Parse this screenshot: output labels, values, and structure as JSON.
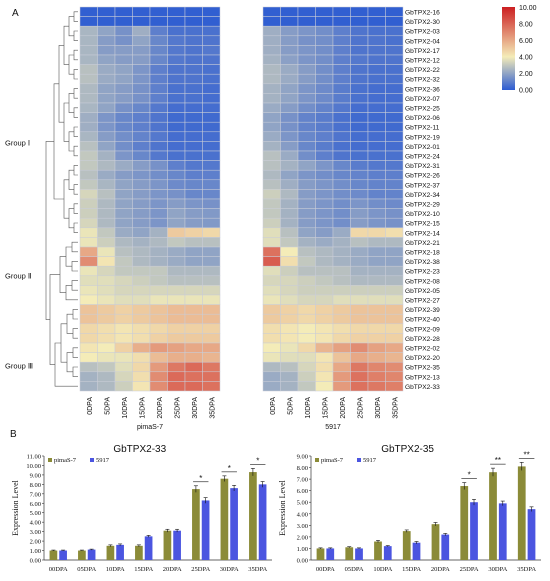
{
  "panels": {
    "a": "A",
    "b": "B"
  },
  "colors": {
    "low": "#2c5bd2",
    "mid": "#f4ecb8",
    "high": "#cc1f22",
    "series1": "#8b8b38",
    "series2": "#4b55e0"
  },
  "heatmap": {
    "type": "heatmap",
    "groups": [
      "Group Ⅰ",
      "Group Ⅱ",
      "Group Ⅲ"
    ],
    "genes": [
      "GbTPX2-16",
      "GbTPX2-30",
      "GbTPX2-03",
      "GbTPX2-04",
      "GbTPX2-17",
      "GbTPX2-12",
      "GbTPX2-22",
      "GbTPX2-32",
      "GbTPX2-36",
      "GbTPX2-07",
      "GbTPX2-25",
      "GbTPX2-06",
      "GbTPX2-11",
      "GbTPX2-19",
      "GbTPX2-01",
      "GbTPX2-24",
      "GbTPX2-31",
      "GbTPX2-26",
      "GbTPX2-37",
      "GbTPX2-34",
      "GbTPX2-29",
      "GbTPX2-10",
      "GbTPX2-15",
      "GbTPX2-14",
      "GbTPX2-21",
      "GbTPX2-18",
      "GbTPX2-38",
      "GbTPX2-23",
      "GbTPX2-08",
      "GbTPX2-05",
      "GbTPX2-27",
      "GbTPX2-39",
      "GbTPX2-40",
      "GbTPX2-09",
      "GbTPX2-28",
      "GbTPX2-02",
      "GbTPX2-20",
      "GbTPX2-35",
      "GbTPX2-13",
      "GbTPX2-33"
    ],
    "columns": [
      "0DPA",
      "5DPA",
      "10DPA",
      "15DPA",
      "20DPA",
      "25DPA",
      "30DPA",
      "35DPA"
    ],
    "samples": [
      "pimaS-7",
      "5917"
    ],
    "legend_ticks": [
      "10.00",
      "8.00",
      "6.00",
      "4.00",
      "2.00",
      "0.00"
    ],
    "vmin": 0,
    "vmax": 10,
    "values_pimaS7": [
      [
        0.1,
        0.1,
        0.1,
        0.1,
        0.1,
        0.1,
        0.1,
        0.1
      ],
      [
        0.1,
        0.1,
        0.1,
        0.1,
        0.1,
        0.1,
        0.1,
        0.1
      ],
      [
        2.5,
        2.0,
        1.5,
        2.3,
        1.0,
        0.6,
        0.6,
        0.6
      ],
      [
        2.5,
        1.8,
        1.5,
        2.0,
        1.2,
        0.8,
        0.7,
        0.7
      ],
      [
        2.5,
        1.8,
        1.8,
        1.8,
        1.2,
        0.8,
        0.7,
        0.8
      ],
      [
        2.5,
        2.0,
        1.8,
        1.8,
        1.2,
        0.8,
        0.7,
        0.7
      ],
      [
        2.8,
        2.2,
        2.0,
        1.6,
        1.0,
        0.7,
        0.7,
        0.6
      ],
      [
        2.8,
        2.2,
        2.0,
        1.6,
        1.0,
        0.7,
        0.7,
        0.6
      ],
      [
        2.6,
        2.0,
        1.8,
        1.5,
        1.0,
        0.6,
        0.6,
        0.5
      ],
      [
        2.6,
        2.0,
        1.8,
        1.5,
        1.0,
        0.6,
        0.6,
        0.5
      ],
      [
        2.5,
        2.0,
        1.5,
        1.2,
        0.8,
        0.5,
        0.5,
        0.5
      ],
      [
        2.3,
        1.6,
        1.2,
        1.0,
        0.7,
        0.4,
        0.4,
        0.4
      ],
      [
        2.3,
        1.6,
        1.2,
        1.0,
        0.7,
        0.4,
        0.4,
        0.4
      ],
      [
        2.5,
        1.8,
        1.4,
        1.1,
        0.8,
        0.5,
        0.5,
        0.5
      ],
      [
        2.8,
        2.0,
        1.4,
        1.0,
        0.7,
        0.5,
        0.5,
        0.5
      ],
      [
        3.0,
        2.4,
        1.6,
        1.2,
        0.8,
        0.6,
        0.6,
        0.6
      ],
      [
        3.0,
        2.6,
        2.2,
        1.8,
        1.5,
        1.0,
        0.8,
        0.8
      ],
      [
        2.8,
        2.2,
        1.8,
        1.6,
        1.4,
        1.2,
        1.0,
        1.0
      ],
      [
        3.0,
        2.5,
        2.0,
        1.8,
        1.6,
        1.3,
        1.2,
        1.2
      ],
      [
        3.4,
        2.8,
        2.0,
        1.8,
        1.6,
        1.5,
        1.2,
        1.2
      ],
      [
        3.2,
        2.6,
        2.0,
        1.8,
        1.6,
        1.8,
        1.6,
        1.5
      ],
      [
        3.2,
        2.6,
        2.0,
        1.8,
        1.6,
        2.0,
        1.8,
        1.7
      ],
      [
        3.4,
        2.6,
        2.0,
        1.8,
        1.6,
        2.0,
        1.8,
        1.7
      ],
      [
        3.8,
        3.0,
        2.2,
        2.0,
        2.4,
        5.0,
        4.8,
        4.6
      ],
      [
        3.8,
        3.2,
        2.6,
        2.4,
        2.6,
        3.0,
        2.8,
        2.8
      ],
      [
        6.0,
        3.8,
        2.8,
        2.6,
        2.4,
        2.2,
        2.0,
        2.0
      ],
      [
        6.8,
        4.2,
        3.0,
        2.6,
        2.4,
        2.2,
        2.0,
        2.0
      ],
      [
        3.8,
        3.4,
        3.0,
        3.0,
        3.0,
        2.6,
        2.6,
        2.6
      ],
      [
        3.6,
        3.6,
        3.4,
        3.2,
        3.0,
        2.8,
        2.8,
        2.8
      ],
      [
        3.8,
        3.6,
        3.4,
        3.4,
        3.4,
        3.4,
        3.4,
        3.4
      ],
      [
        4.0,
        3.8,
        3.6,
        3.6,
        3.8,
        3.8,
        3.8,
        3.8
      ],
      [
        5.2,
        5.0,
        4.8,
        5.0,
        5.2,
        5.4,
        5.4,
        5.4
      ],
      [
        5.2,
        5.0,
        4.8,
        5.0,
        5.2,
        5.4,
        5.4,
        5.4
      ],
      [
        4.6,
        4.4,
        4.2,
        4.4,
        4.6,
        4.8,
        4.8,
        4.8
      ],
      [
        4.6,
        4.4,
        4.2,
        4.4,
        4.8,
        5.0,
        5.0,
        5.0
      ],
      [
        4.2,
        4.0,
        4.8,
        5.8,
        6.4,
        6.2,
        6.0,
        6.0
      ],
      [
        4.0,
        3.8,
        3.8,
        4.4,
        5.4,
        5.8,
        5.8,
        5.6
      ],
      [
        2.8,
        3.0,
        3.6,
        4.6,
        6.4,
        7.4,
        7.8,
        7.4
      ],
      [
        2.4,
        2.6,
        3.4,
        4.4,
        6.8,
        7.8,
        7.6,
        7.6
      ],
      [
        2.4,
        2.6,
        3.2,
        4.2,
        6.8,
        7.8,
        7.8,
        7.6
      ]
    ],
    "values_5917": [
      [
        0.1,
        0.1,
        0.1,
        0.1,
        0.1,
        0.1,
        0.1,
        0.1
      ],
      [
        0.1,
        0.1,
        0.1,
        0.1,
        0.1,
        0.1,
        0.1,
        0.1
      ],
      [
        2.3,
        1.8,
        1.6,
        1.4,
        1.0,
        0.7,
        0.6,
        0.6
      ],
      [
        2.3,
        1.8,
        1.5,
        1.4,
        1.0,
        0.7,
        0.7,
        0.6
      ],
      [
        2.3,
        1.8,
        1.6,
        1.4,
        1.0,
        0.7,
        0.7,
        0.7
      ],
      [
        2.4,
        1.9,
        1.6,
        1.4,
        1.0,
        0.8,
        0.7,
        0.7
      ],
      [
        2.6,
        2.2,
        1.8,
        1.4,
        1.0,
        0.7,
        0.6,
        0.6
      ],
      [
        2.6,
        2.2,
        1.8,
        1.4,
        1.0,
        0.7,
        0.6,
        0.6
      ],
      [
        2.4,
        2.0,
        1.6,
        1.3,
        0.9,
        0.6,
        0.5,
        0.5
      ],
      [
        2.4,
        2.0,
        1.6,
        1.3,
        0.9,
        0.6,
        0.5,
        0.5
      ],
      [
        2.2,
        1.8,
        1.4,
        1.1,
        0.8,
        0.5,
        0.5,
        0.5
      ],
      [
        2.0,
        1.5,
        1.1,
        0.9,
        0.6,
        0.4,
        0.4,
        0.4
      ],
      [
        2.0,
        1.5,
        1.1,
        0.9,
        0.6,
        0.4,
        0.4,
        0.4
      ],
      [
        2.2,
        1.6,
        1.2,
        1.0,
        0.7,
        0.5,
        0.5,
        0.5
      ],
      [
        2.4,
        1.8,
        1.2,
        0.9,
        0.6,
        0.5,
        0.5,
        0.5
      ],
      [
        2.8,
        2.2,
        1.4,
        1.0,
        0.7,
        0.6,
        0.6,
        0.6
      ],
      [
        2.8,
        2.4,
        2.0,
        1.6,
        1.2,
        0.9,
        0.8,
        0.8
      ],
      [
        2.6,
        2.0,
        1.6,
        1.4,
        1.2,
        1.1,
        1.0,
        1.0
      ],
      [
        2.8,
        2.3,
        1.8,
        1.6,
        1.4,
        1.2,
        1.1,
        1.1
      ],
      [
        3.2,
        2.6,
        1.8,
        1.6,
        1.4,
        1.3,
        1.1,
        1.1
      ],
      [
        3.0,
        2.4,
        1.8,
        1.6,
        1.4,
        1.6,
        1.4,
        1.3
      ],
      [
        3.0,
        2.4,
        1.8,
        1.6,
        1.4,
        1.8,
        1.6,
        1.5
      ],
      [
        3.2,
        2.4,
        1.8,
        1.6,
        1.4,
        1.8,
        1.6,
        1.5
      ],
      [
        3.6,
        2.8,
        2.0,
        1.8,
        2.2,
        4.6,
        4.6,
        4.4
      ],
      [
        3.6,
        3.0,
        2.4,
        2.2,
        2.4,
        2.8,
        2.6,
        2.6
      ],
      [
        7.6,
        4.0,
        2.8,
        2.6,
        2.4,
        2.2,
        2.0,
        2.0
      ],
      [
        8.2,
        4.4,
        3.0,
        2.6,
        2.4,
        2.2,
        2.0,
        2.0
      ],
      [
        3.6,
        3.2,
        2.8,
        2.8,
        2.8,
        2.4,
        2.4,
        2.4
      ],
      [
        3.4,
        3.4,
        3.2,
        3.0,
        2.8,
        2.6,
        2.6,
        2.6
      ],
      [
        3.6,
        3.4,
        3.2,
        3.2,
        3.2,
        3.2,
        3.2,
        3.2
      ],
      [
        3.8,
        3.6,
        3.4,
        3.4,
        3.6,
        3.6,
        3.6,
        3.6
      ],
      [
        5.0,
        4.8,
        4.6,
        4.8,
        5.0,
        5.2,
        5.2,
        5.2
      ],
      [
        5.0,
        4.8,
        4.6,
        4.8,
        5.0,
        5.2,
        5.2,
        5.2
      ],
      [
        4.4,
        4.2,
        4.0,
        4.2,
        4.4,
        4.6,
        4.6,
        4.6
      ],
      [
        4.4,
        4.2,
        4.0,
        4.2,
        4.6,
        4.8,
        4.8,
        4.8
      ],
      [
        4.0,
        3.8,
        4.6,
        5.6,
        6.2,
        6.8,
        6.2,
        6.0
      ],
      [
        3.8,
        3.6,
        3.6,
        4.2,
        5.2,
        6.0,
        5.8,
        5.6
      ],
      [
        2.6,
        2.8,
        3.4,
        4.4,
        6.0,
        7.4,
        7.0,
        6.8
      ],
      [
        2.2,
        2.4,
        3.2,
        4.2,
        6.4,
        7.6,
        7.2,
        7.0
      ],
      [
        2.2,
        2.4,
        3.0,
        4.0,
        6.4,
        7.6,
        7.4,
        7.2
      ]
    ]
  },
  "chart_data": [
    {
      "type": "bar",
      "title": "GbTPX2-33",
      "ylabel": "Expression Level",
      "categories": [
        "00DPA",
        "05DPA",
        "10DPA",
        "15DPA",
        "20DPA",
        "25DPA",
        "30DPA",
        "35DPA"
      ],
      "ylim": [
        0,
        11
      ],
      "yticks": [
        "0.00",
        "1.00",
        "2.00",
        "3.00",
        "4.00",
        "5.00",
        "6.00",
        "7.00",
        "8.00",
        "9.00",
        "10.00",
        "11.00"
      ],
      "series": [
        {
          "name": "pimaS-7",
          "values": [
            1.0,
            1.0,
            1.5,
            1.5,
            3.1,
            7.5,
            8.6,
            9.3
          ],
          "errors": [
            0.05,
            0.05,
            0.1,
            0.1,
            0.15,
            0.35,
            0.3,
            0.4
          ]
        },
        {
          "name": "5917",
          "values": [
            1.0,
            1.1,
            1.6,
            2.5,
            3.1,
            6.3,
            7.6,
            8.0
          ],
          "errors": [
            0.05,
            0.05,
            0.1,
            0.1,
            0.15,
            0.3,
            0.3,
            0.3
          ]
        }
      ],
      "significance": [
        "",
        "",
        "",
        "",
        "",
        "*",
        "*",
        "*"
      ]
    },
    {
      "type": "bar",
      "title": "GbTPX2-35",
      "ylabel": "Expression Level",
      "categories": [
        "00DPA",
        "05DPA",
        "10DPA",
        "15DPA",
        "20DPA",
        "25DPA",
        "30DPA",
        "35DPA"
      ],
      "ylim": [
        0,
        9
      ],
      "yticks": [
        "0.00",
        "1.00",
        "2.00",
        "3.00",
        "4.00",
        "5.00",
        "6.00",
        "7.00",
        "8.00",
        "9.00"
      ],
      "series": [
        {
          "name": "pimaS-7",
          "values": [
            1.0,
            1.1,
            1.6,
            2.5,
            3.1,
            6.4,
            7.6,
            8.1
          ],
          "errors": [
            0.05,
            0.05,
            0.1,
            0.1,
            0.15,
            0.3,
            0.35,
            0.35
          ]
        },
        {
          "name": "5917",
          "values": [
            1.0,
            1.0,
            1.2,
            1.5,
            2.2,
            5.0,
            4.9,
            4.4
          ],
          "errors": [
            0.05,
            0.05,
            0.05,
            0.1,
            0.1,
            0.25,
            0.2,
            0.2
          ]
        }
      ],
      "significance": [
        "",
        "",
        "",
        "",
        "",
        "*",
        "**",
        "**"
      ]
    }
  ]
}
